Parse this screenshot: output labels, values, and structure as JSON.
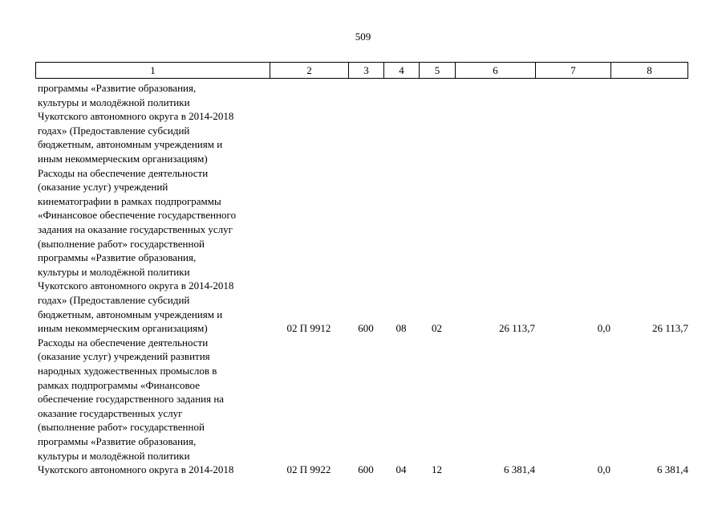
{
  "page_number": "509",
  "header_cells": [
    "1",
    "2",
    "3",
    "4",
    "5",
    "6",
    "7",
    "8"
  ],
  "blocks": [
    {
      "text": "программы «Развитие образования,\nкультуры и молодёжной политики\nЧукотского автономного округа в 2014-2018\nгодах» (Предоставление субсидий\nбюджетным, автономным учреждениям и\nиным некоммерческим организациям)"
    },
    {
      "text": "Расходы на обеспечение деятельности\n(оказание услуг) учреждений\nкинематографии в рамках подпрограммы\n«Финансовое обеспечение государственного\nзадания на оказание государственных услуг\n(выполнение работ» государственной\nпрограммы «Развитие образования,\nкультуры и молодёжной политики\nЧукотского автономного округа в 2014-2018\nгодах» (Предоставление субсидий\nбюджетным, автономным учреждениям и\nиным некоммерческим организациям)",
      "code": "02 П 9912",
      "c3": "600",
      "c4": "08",
      "c5": "02",
      "c6": "26 113,7",
      "c7": "0,0",
      "c8": "26 113,7"
    },
    {
      "text": "Расходы на обеспечение деятельности\n(оказание услуг) учреждений развития\nнародных художественных промыслов в\nрамках подпрограммы «Финансовое\nобеспечение государственного задания на\nоказание государственных услуг\n(выполнение работ» государственной\nпрограммы «Развитие образования,\nкультуры и молодёжной политики\nЧукотского автономного округа в 2014-2018",
      "code": "02 П 9922",
      "c3": "600",
      "c4": "04",
      "c5": "12",
      "c6": "6 381,4",
      "c7": "0,0",
      "c8": "6 381,4"
    }
  ]
}
